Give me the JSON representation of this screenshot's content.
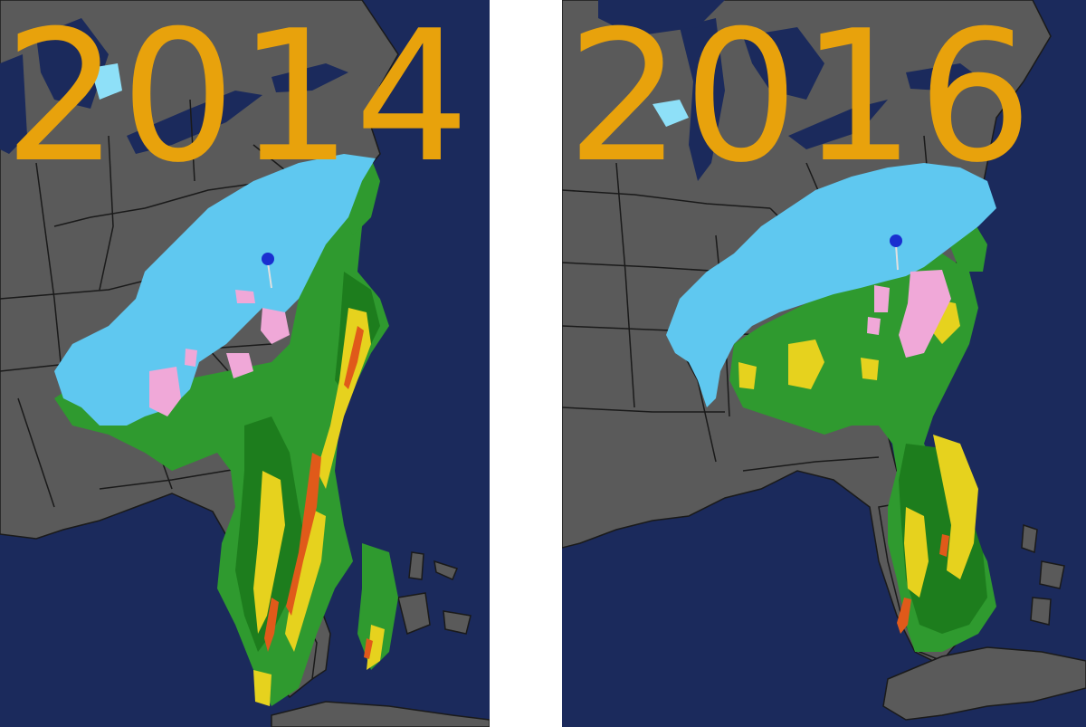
{
  "panels": [
    {
      "year": "2014"
    },
    {
      "year": "2016"
    }
  ],
  "colors": {
    "ocean": "#1b2a5c",
    "land": "#5a5a5a",
    "border": "#1a1a1a",
    "snow": "#5fc8f0",
    "snow_light": "#8ee0f8",
    "mix": "#f0a8d8",
    "rain_light": "#2f9a2f",
    "rain": "#1d7d1d",
    "rain_mod": "#e6d21e",
    "rain_heavy": "#e05a1a",
    "year_label": "#e8a20c",
    "pin": "#1a2fd0",
    "divider": "#ffffff"
  }
}
